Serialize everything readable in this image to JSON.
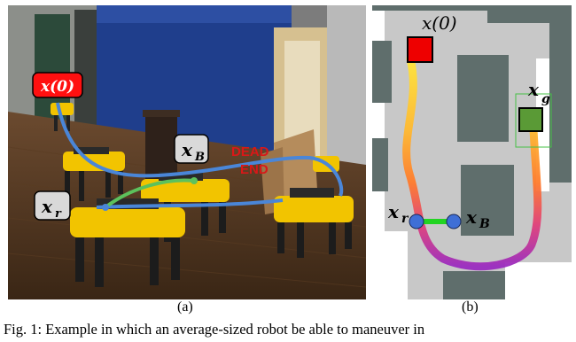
{
  "figure": {
    "panel_a": {
      "labels": {
        "x0": "x(0)",
        "xB": "x",
        "xB_sub": "B",
        "xr": "x",
        "xr_sub": "r"
      },
      "sign_text_line1": "DEAD",
      "sign_text_line2": "END",
      "colors": {
        "path_blue": "#4a86d8",
        "path_green": "#5cc15c",
        "start_box": "#ff1010",
        "robot_yellow": "#f2c400",
        "wall_blue": "#1f3e8c"
      }
    },
    "panel_b": {
      "labels": {
        "x0": "x(0)",
        "xg": "x",
        "xg_sub": "g",
        "xr": "x",
        "xr_sub": "r",
        "xB": "x",
        "xB_sub": "B"
      },
      "colors": {
        "map_free": "#c8c8c8",
        "obstacle": "#5f6e6c",
        "start": "#ee0000",
        "goal": "#5a9a36",
        "robot": "#3f6fd6",
        "link": "#22d422"
      }
    },
    "subfigure_label_a": "(a)",
    "subfigure_label_b": "(b)",
    "caption": "Fig. 1:   Example in which an average-sized robot be able to maneuver in"
  }
}
